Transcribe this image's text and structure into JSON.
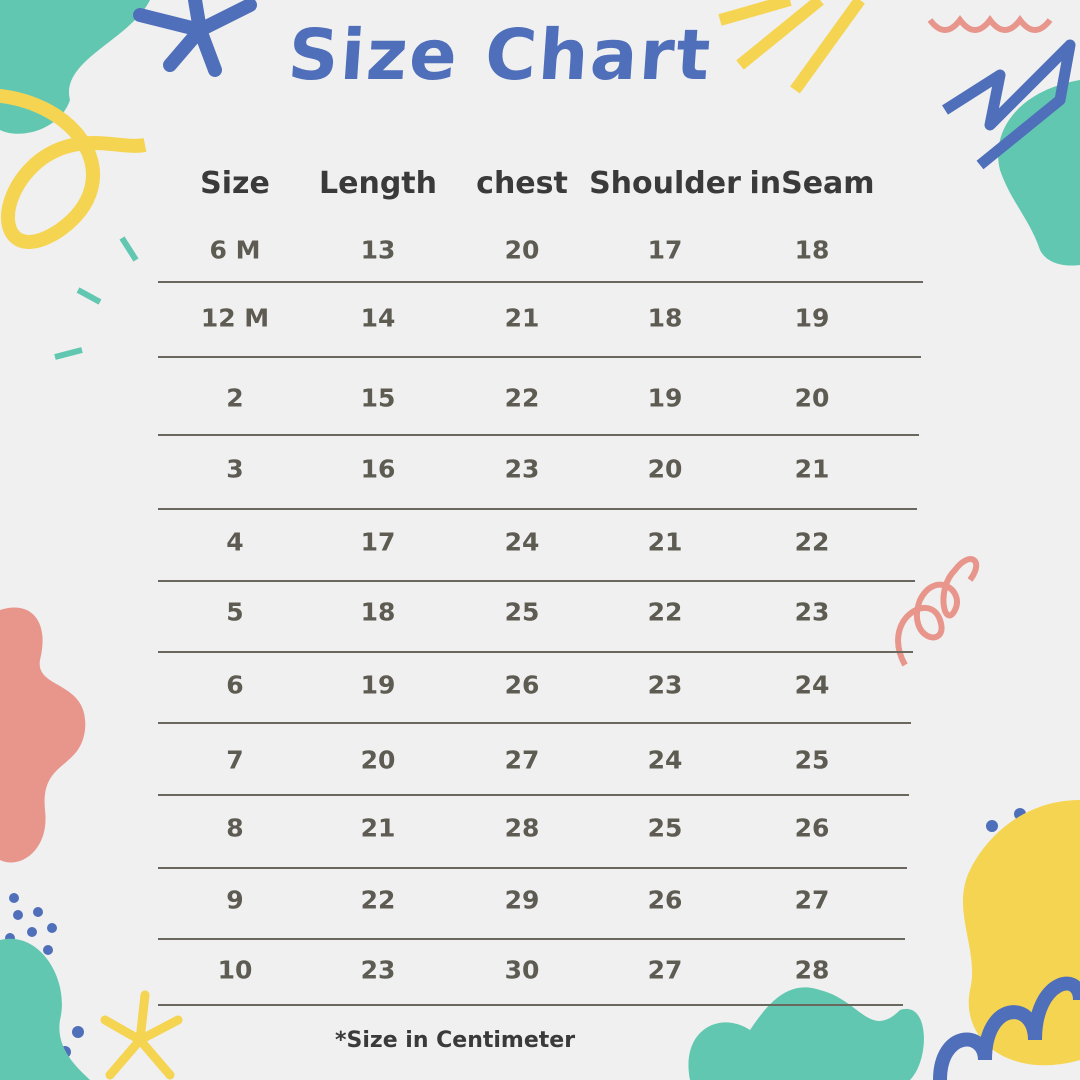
{
  "title": "Size Chart",
  "headers": [
    "Size",
    "Length",
    "chest",
    "Shoulder",
    "inSeam"
  ],
  "rows": [
    [
      "6 M",
      "13",
      "20",
      "17",
      "18"
    ],
    [
      "12 M",
      "14",
      "21",
      "18",
      "19"
    ],
    [
      "2",
      "15",
      "22",
      "19",
      "20"
    ],
    [
      "3",
      "16",
      "23",
      "20",
      "21"
    ],
    [
      "4",
      "17",
      "24",
      "21",
      "22"
    ],
    [
      "5",
      "18",
      "25",
      "22",
      "23"
    ],
    [
      "6",
      "19",
      "26",
      "23",
      "24"
    ],
    [
      "7",
      "20",
      "27",
      "24",
      "25"
    ],
    [
      "8",
      "21",
      "28",
      "25",
      "26"
    ],
    [
      "9",
      "22",
      "29",
      "26",
      "27"
    ],
    [
      "10",
      "23",
      "30",
      "27",
      "28"
    ]
  ],
  "footnote": "*Size in Centimeter",
  "colors": {
    "title": "#4f6fba",
    "teal": "#62c7b0",
    "yellow": "#f5d451",
    "coral": "#e8968c",
    "blue": "#4f6fba"
  }
}
